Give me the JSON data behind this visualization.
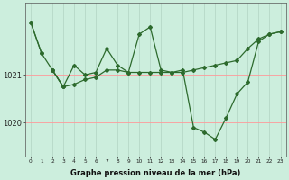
{
  "xlabel": "Graphe pression niveau de la mer (hPa)",
  "background_color": "#cceedd",
  "grid_color_h": "#ff9999",
  "grid_color_v": "#aaccbb",
  "line_color": "#2d6a2d",
  "ylim": [
    1019.3,
    1022.5
  ],
  "yticks": [
    1020,
    1021
  ],
  "xticks": [
    0,
    1,
    2,
    3,
    4,
    5,
    6,
    7,
    8,
    9,
    10,
    11,
    12,
    13,
    14,
    15,
    16,
    17,
    18,
    19,
    20,
    21,
    22,
    23
  ],
  "series": [
    [
      1022.1,
      1021.45,
      null,
      null,
      null,
      null,
      null,
      null,
      null,
      null,
      null,
      null,
      null,
      null,
      null,
      null,
      null,
      null,
      null,
      null,
      null,
      null,
      null,
      null
    ],
    [
      null,
      null,
      1021.1,
      1020.75,
      1020.8,
      1020.9,
      1020.95,
      1021.1,
      1021.1,
      1021.05,
      1021.05,
      1021.05,
      1021.05,
      1021.05,
      1021.05,
      1021.1,
      1021.15,
      1021.2,
      1021.25,
      1021.3,
      1021.55,
      1021.75,
      1021.85,
      1021.9
    ],
    [
      null,
      null,
      1021.1,
      1020.75,
      null,
      null,
      null,
      null,
      null,
      null,
      null,
      null,
      null,
      null,
      null,
      null,
      null,
      null,
      null,
      null,
      null,
      null,
      null,
      null
    ],
    [
      1022.1,
      1021.45,
      1021.1,
      1020.75,
      1021.2,
      1021.0,
      1021.05,
      1021.55,
      1021.2,
      1021.05,
      1021.85,
      1022.0,
      1021.1,
      1021.05,
      1021.1,
      1019.9,
      1019.8,
      1019.65,
      1020.1,
      1020.6,
      1020.85,
      1021.7,
      1021.85,
      1021.9
    ]
  ]
}
